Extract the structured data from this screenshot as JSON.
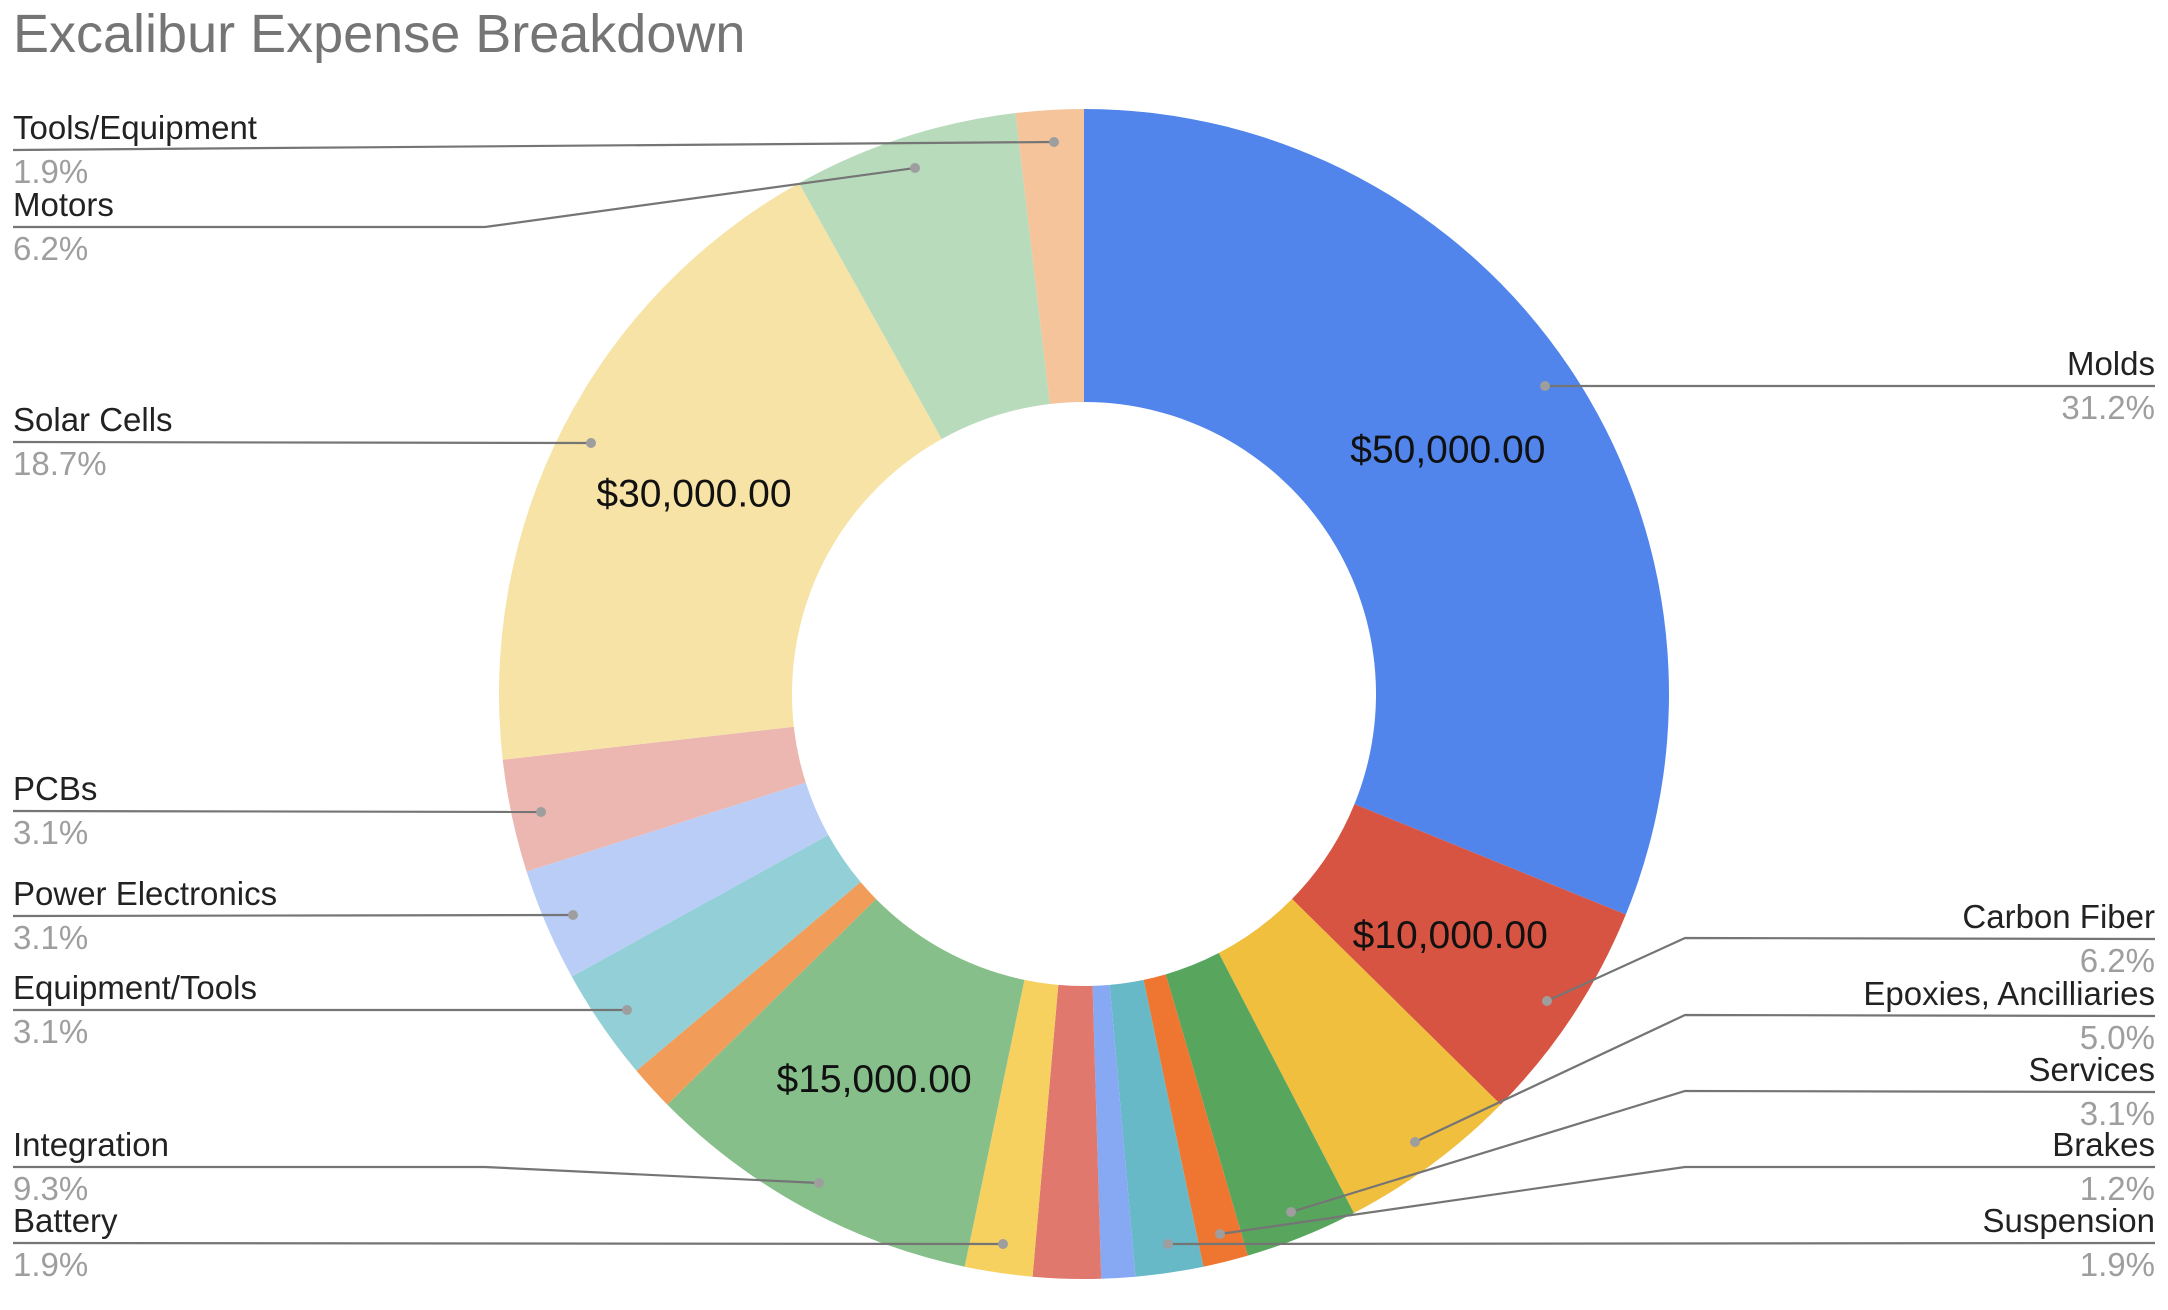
{
  "chart_data": {
    "type": "pie",
    "style": "donut",
    "title": "Excalibur Expense Breakdown",
    "slices": [
      {
        "label": "Molds",
        "value": 50000,
        "percent_label": "31.2%",
        "value_label": "$50,000.00",
        "color": "#5185EC"
      },
      {
        "label": "Carbon Fiber",
        "value": 10000,
        "percent_label": "6.2%",
        "value_label": "$10,000.00",
        "color": "#D75442"
      },
      {
        "label": "Epoxies, Ancilliaries",
        "value": 8000,
        "percent_label": "5.0%",
        "color": "#F0BF3E"
      },
      {
        "label": "Services",
        "value": 5000,
        "percent_label": "3.1%",
        "color": "#58A55D"
      },
      {
        "label": "Brakes",
        "value": 2000,
        "percent_label": "1.2%",
        "color": "#EE7631"
      },
      {
        "label": "Suspension",
        "value": 3000,
        "percent_label": "1.9%",
        "color": "#67B9C7"
      },
      {
        "label": "",
        "value": 1500,
        "color": "#87A8F2"
      },
      {
        "label": "",
        "value": 3000,
        "color": "#E0786D"
      },
      {
        "label": "Battery",
        "value": 3000,
        "percent_label": "1.9%",
        "color": "#F6D160"
      },
      {
        "label": "Integration",
        "value": 15000,
        "percent_label": "9.3%",
        "value_label": "$15,000.00",
        "color": "#87BF8A"
      },
      {
        "label": "",
        "value": 2000,
        "color": "#F19D59"
      },
      {
        "label": "Equipment/Tools",
        "value": 5000,
        "percent_label": "3.1%",
        "color": "#92CFD7"
      },
      {
        "label": "Power Electronics",
        "value": 5000,
        "percent_label": "3.1%",
        "color": "#BACDF7"
      },
      {
        "label": "PCBs",
        "value": 5000,
        "percent_label": "3.1%",
        "color": "#ECB7B1"
      },
      {
        "label": "Solar Cells",
        "value": 30000,
        "percent_label": "18.7%",
        "value_label": "$30,000.00",
        "color": "#F7E3A6"
      },
      {
        "label": "Motors",
        "value": 10000,
        "percent_label": "6.2%",
        "color": "#B8DBBC"
      },
      {
        "label": "Tools/Equipment",
        "value": 3000,
        "percent_label": "1.9%",
        "color": "#F5C49B"
      }
    ],
    "start_angle_deg": 0,
    "direction": "clockwise",
    "legend": "none"
  }
}
